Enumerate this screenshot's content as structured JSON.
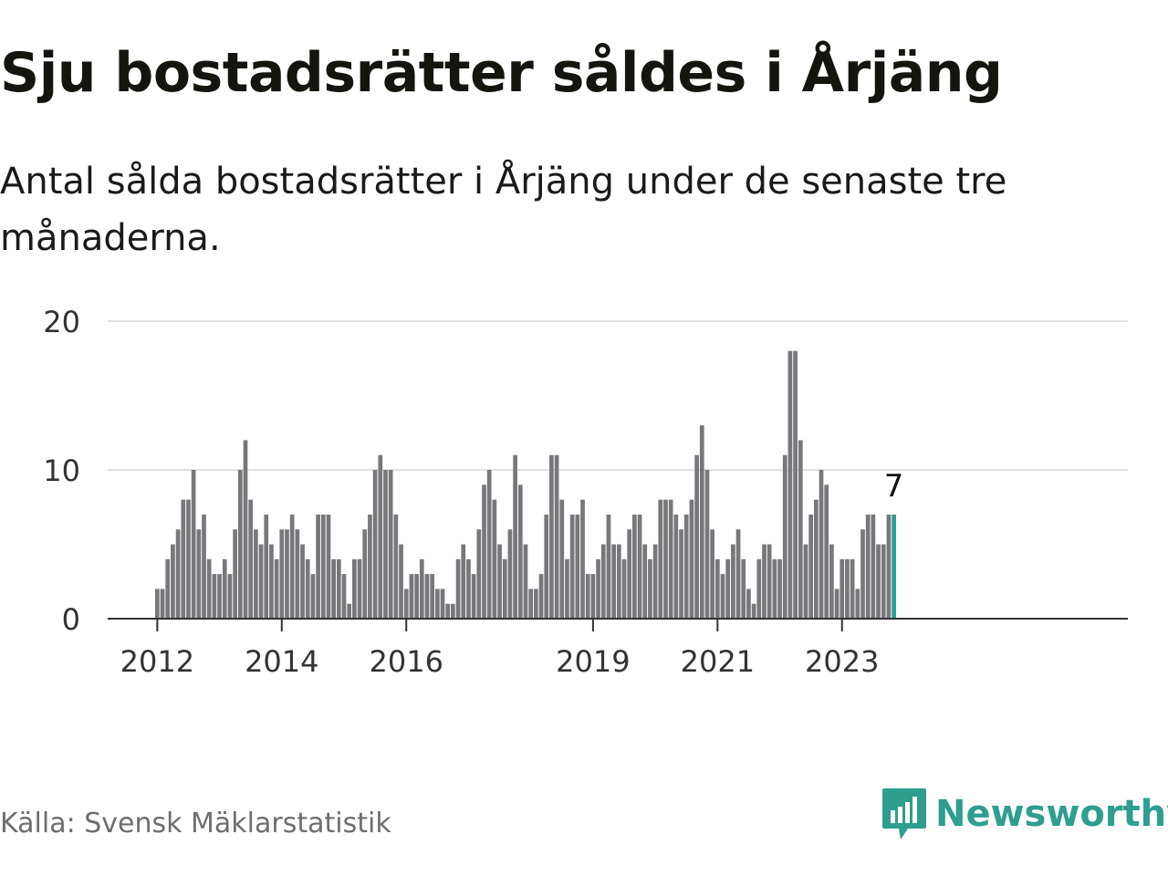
{
  "header": {
    "title": "Sju bostadsrätter såldes i Årjäng",
    "subtitle": "Antal sålda bostadsrätter i Årjäng under de senaste tre månaderna."
  },
  "footer": {
    "source": "Källa: Svensk Mäklarstatistik",
    "brand": "Newsworthy",
    "brand_icon": "bar-chart-speech-bubble-icon"
  },
  "colors": {
    "bar": "#77777c",
    "highlight": "#2a9d8f",
    "grid": "#e0e0e0",
    "axis": "#333333",
    "brand": "#2e9e8f"
  },
  "chart_data": {
    "type": "bar",
    "title": "Sju bostadsrätter såldes i Årjäng",
    "subtitle": "Antal sålda bostadsrätter i Årjäng under de senaste tre månaderna.",
    "ylim": [
      0,
      20
    ],
    "yticks": [
      0,
      10,
      20
    ],
    "grid": true,
    "x_start": "2012-01",
    "x_end": "2023-12",
    "xtick_labels": [
      "2012",
      "2014",
      "2016",
      "2019",
      "2021",
      "2023"
    ],
    "highlight_last": true,
    "highlight_label": "7",
    "values": [
      2,
      2,
      4,
      5,
      6,
      8,
      8,
      10,
      6,
      7,
      4,
      3,
      3,
      4,
      3,
      6,
      10,
      12,
      8,
      6,
      5,
      7,
      5,
      4,
      6,
      6,
      7,
      6,
      5,
      4,
      3,
      7,
      7,
      7,
      4,
      4,
      3,
      1,
      4,
      4,
      6,
      7,
      10,
      11,
      10,
      10,
      7,
      5,
      2,
      3,
      3,
      4,
      3,
      3,
      2,
      2,
      1,
      1,
      4,
      5,
      4,
      3,
      6,
      9,
      10,
      8,
      5,
      4,
      6,
      11,
      9,
      5,
      2,
      2,
      3,
      7,
      11,
      11,
      8,
      4,
      7,
      7,
      8,
      3,
      3,
      4,
      5,
      7,
      5,
      5,
      4,
      6,
      7,
      7,
      5,
      4,
      5,
      8,
      8,
      8,
      7,
      6,
      7,
      8,
      11,
      13,
      10,
      6,
      4,
      3,
      4,
      5,
      6,
      4,
      2,
      1,
      4,
      5,
      5,
      4,
      4,
      11,
      18,
      18,
      12,
      5,
      7,
      8,
      10,
      9,
      5,
      2,
      4,
      4,
      4,
      2,
      6,
      7,
      7,
      5,
      5,
      7,
      7
    ]
  }
}
